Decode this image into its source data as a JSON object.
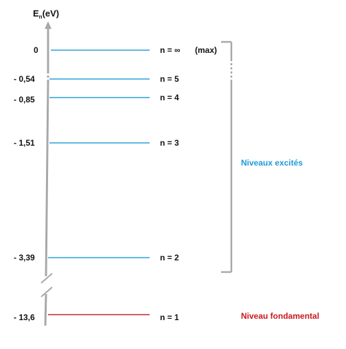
{
  "axis": {
    "label_main": "E",
    "label_sub": "n",
    "label_unit": "(eV)"
  },
  "levels": [
    {
      "energy": "0",
      "n_label": "n = ∞",
      "extra": "(max)",
      "kind": "excited"
    },
    {
      "energy": "- 0,54",
      "n_label": "n = 5",
      "extra": "",
      "kind": "excited"
    },
    {
      "energy": "- 0,85",
      "n_label": "n = 4",
      "extra": "",
      "kind": "excited"
    },
    {
      "energy": "- 1,51",
      "n_label": "n = 3",
      "extra": "",
      "kind": "excited"
    },
    {
      "energy": "- 3,39",
      "n_label": "n = 2",
      "extra": "",
      "kind": "excited"
    },
    {
      "energy": "- 13,6",
      "n_label": "n = 1",
      "extra": "",
      "kind": "ground"
    }
  ],
  "groups": {
    "excited_label": "Niveaux excités",
    "ground_label": "Niveau fondamental"
  },
  "colors": {
    "axis": "#a8a8a8",
    "excited_line": "#2a9fd8",
    "ground_line": "#c0282d",
    "excited_text": "#1f9ad6",
    "ground_text": "#c8181e",
    "label_text": "#111111"
  }
}
